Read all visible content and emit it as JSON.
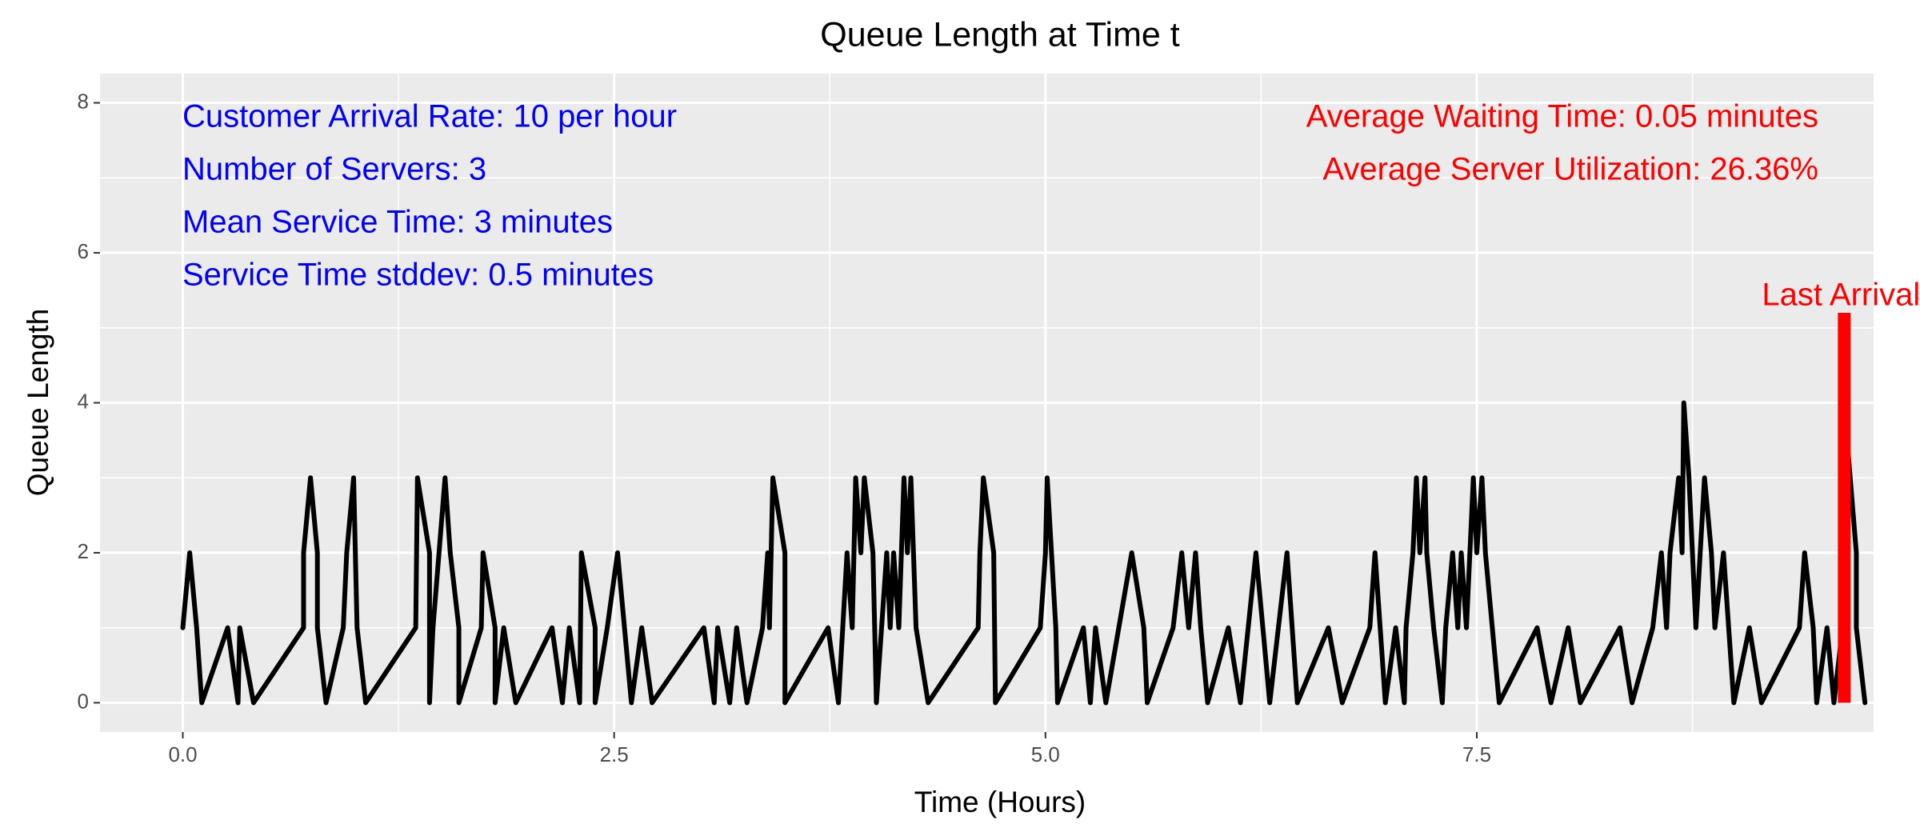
{
  "chart_data": {
    "type": "line",
    "title": "Queue Length at Time t",
    "x_label": "Time (Hours)",
    "y_label": "Queue Length",
    "x": [
      0.0,
      0.04,
      0.08,
      0.11,
      0.26,
      0.32,
      0.33,
      0.41,
      0.7,
      0.7,
      0.74,
      0.78,
      0.78,
      0.83,
      0.93,
      0.95,
      0.99,
      1.01,
      1.06,
      1.35,
      1.36,
      1.43,
      1.43,
      1.45,
      1.52,
      1.55,
      1.6,
      1.6,
      1.73,
      1.74,
      1.81,
      1.81,
      1.86,
      1.93,
      2.14,
      2.2,
      2.24,
      2.3,
      2.31,
      2.39,
      2.39,
      2.46,
      2.52,
      2.6,
      2.66,
      2.72,
      3.02,
      3.08,
      3.1,
      3.17,
      3.21,
      3.27,
      3.36,
      3.39,
      3.4,
      3.42,
      3.49,
      3.49,
      3.74,
      3.8,
      3.85,
      3.88,
      3.9,
      3.93,
      3.95,
      4.0,
      4.02,
      4.08,
      4.1,
      4.12,
      4.15,
      4.18,
      4.2,
      4.22,
      4.25,
      4.32,
      4.61,
      4.62,
      4.64,
      4.7,
      4.71,
      4.97,
      5.0,
      5.01,
      5.06,
      5.07,
      5.22,
      5.26,
      5.29,
      5.35,
      5.5,
      5.57,
      5.59,
      5.74,
      5.79,
      5.83,
      5.87,
      5.9,
      5.94,
      6.06,
      6.13,
      6.22,
      6.3,
      6.35,
      6.4,
      6.46,
      6.64,
      6.72,
      6.88,
      6.91,
      6.97,
      7.03,
      7.08,
      7.09,
      7.13,
      7.15,
      7.17,
      7.2,
      7.21,
      7.25,
      7.3,
      7.32,
      7.36,
      7.39,
      7.41,
      7.44,
      7.48,
      7.5,
      7.53,
      7.55,
      7.63,
      7.85,
      7.93,
      8.03,
      8.1,
      8.33,
      8.4,
      8.52,
      8.57,
      8.6,
      8.62,
      8.67,
      8.69,
      8.7,
      8.73,
      8.75,
      8.77,
      8.82,
      8.86,
      8.88,
      8.93,
      8.96,
      8.99,
      9.08,
      9.15,
      9.37,
      9.4,
      9.45,
      9.47,
      9.53,
      9.57,
      9.62,
      9.65,
      9.7,
      9.7,
      9.75
    ],
    "series": [
      {
        "color": "#000000",
        "values": [
          1,
          2,
          1,
          0,
          1,
          0,
          1,
          0,
          1,
          2,
          3,
          2,
          1,
          0,
          1,
          2,
          3,
          1,
          0,
          1,
          3,
          2,
          0,
          1,
          3,
          2,
          1,
          0,
          1,
          2,
          1,
          0,
          1,
          0,
          1,
          0,
          1,
          0,
          2,
          1,
          0,
          1,
          2,
          0,
          1,
          0,
          1,
          0,
          1,
          0,
          1,
          0,
          1,
          2,
          1,
          3,
          2,
          0,
          1,
          0,
          2,
          1,
          3,
          2,
          3,
          2,
          0,
          2,
          1,
          2,
          1,
          3,
          2,
          3,
          1,
          0,
          1,
          2,
          3,
          2,
          0,
          1,
          2,
          3,
          1,
          0,
          1,
          0,
          1,
          0,
          2,
          1,
          0,
          1,
          2,
          1,
          2,
          1,
          0,
          1,
          0,
          2,
          0,
          1,
          2,
          0,
          1,
          0,
          1,
          2,
          0,
          1,
          0,
          1,
          2,
          3,
          2,
          3,
          2,
          1,
          0,
          1,
          2,
          1,
          2,
          1,
          3,
          2,
          3,
          2,
          0,
          1,
          0,
          1,
          0,
          1,
          0,
          1,
          2,
          1,
          2,
          3,
          2,
          4,
          3,
          2,
          1,
          3,
          2,
          1,
          2,
          1,
          0,
          1,
          0,
          1,
          2,
          1,
          0,
          1,
          0,
          1,
          3.4,
          2,
          1,
          0
        ]
      }
    ],
    "last_arrival": {
      "label": "Last Arrival",
      "x": 9.63,
      "y": 5.2,
      "color": "#ff0000"
    },
    "left_annotations": {
      "color": "#0000ff",
      "texts": [
        "Customer Arrival Rate: 10 per hour",
        "Number of Servers: 3",
        "Mean Service Time: 3 minutes",
        "Service Time stddev: 0.5 minutes"
      ]
    },
    "right_annotations": {
      "color": "#ff0000",
      "texts": [
        "Average Waiting Time: 0.05 minutes",
        "Average Server Utilization: 26.36%"
      ]
    },
    "xlim": [
      -0.48,
      9.8
    ],
    "ylim": [
      -0.39,
      8.39
    ],
    "xticks": [
      {
        "value": 0,
        "label": "0.0"
      },
      2.5,
      {
        "value": 5,
        "label": "5.0"
      },
      7.5
    ],
    "yticks": [
      0,
      2,
      4,
      6,
      8
    ],
    "x_minor_ticks": [
      1.25,
      3.75,
      6.25,
      8.75
    ],
    "y_minor_ticks": [
      1,
      3,
      5,
      7
    ],
    "grid": true
  }
}
